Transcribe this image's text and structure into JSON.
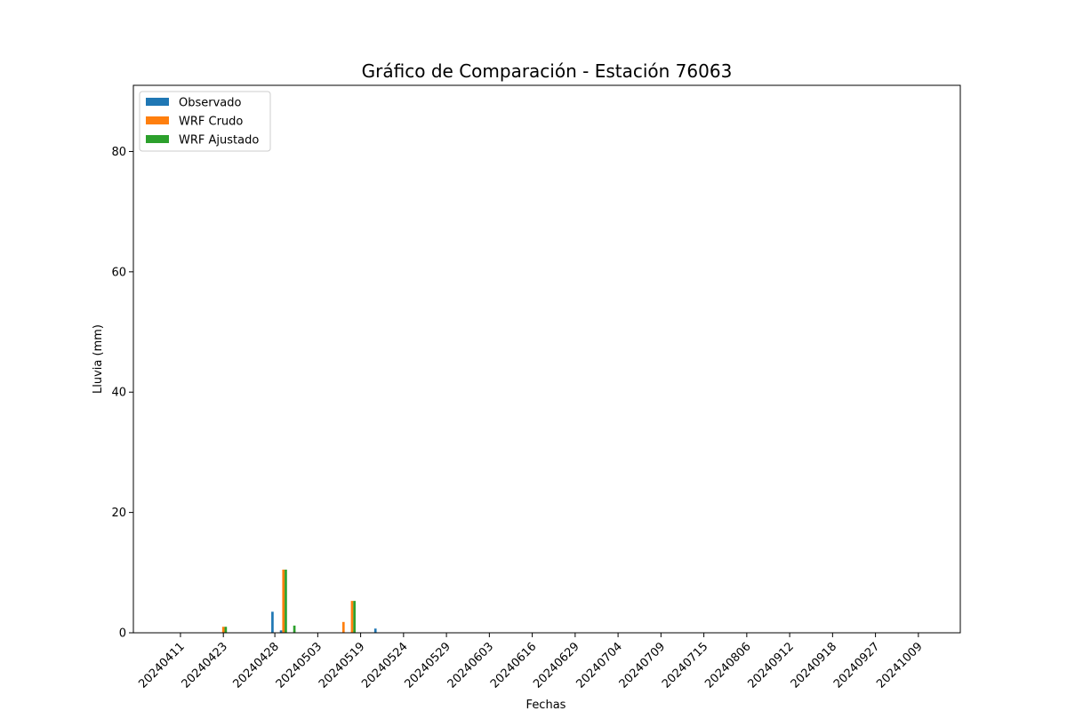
{
  "chart_data": {
    "type": "bar",
    "title": "Gráfico de Comparación - Estación 76063",
    "xlabel": "Fechas",
    "ylabel": "Lluvia (mm)",
    "ylim": [
      0,
      91
    ],
    "yticks": [
      0,
      20,
      40,
      60,
      80
    ],
    "legend_position": "top-left",
    "grid": false,
    "xticks": [
      "20240411",
      "20240423",
      "20240428",
      "20240503",
      "20240519",
      "20240524",
      "20240529",
      "20240603",
      "20240616",
      "20240629",
      "20240704",
      "20240709",
      "20240715",
      "20240806",
      "20240912",
      "20240918",
      "20240927",
      "20241009"
    ],
    "xtick_indices": [
      3,
      8,
      14,
      19,
      24,
      29,
      34,
      39,
      44,
      49,
      54,
      59,
      64,
      69,
      74,
      79,
      84,
      89
    ],
    "n_dates": 92,
    "series": [
      {
        "name": "Observado",
        "color": "#1f77b4",
        "values": [
          0,
          0,
          0,
          0,
          0,
          0,
          0,
          0,
          0,
          0,
          0,
          0,
          0,
          0,
          3.5,
          0.4,
          0,
          0,
          0,
          0,
          0,
          0,
          0,
          0,
          0,
          0,
          0.7,
          0,
          0,
          0,
          0,
          0,
          0,
          0,
          0,
          0,
          0,
          0,
          0,
          0,
          0,
          0,
          0,
          0,
          0,
          0,
          0,
          0,
          0,
          0,
          0,
          0,
          0,
          0,
          0,
          0,
          0,
          0,
          0,
          0,
          0,
          0,
          0,
          0,
          0,
          0,
          0,
          0,
          0,
          0,
          0,
          0,
          0,
          0,
          0,
          0,
          0,
          0,
          0,
          0,
          0,
          0,
          0,
          0,
          0,
          0,
          0,
          0,
          0,
          0,
          0,
          0
        ]
      },
      {
        "name": "WRF Crudo",
        "color": "#ff7f0e",
        "values": [
          0,
          0,
          0,
          0,
          0,
          0,
          0,
          0,
          1,
          0,
          0,
          0,
          0,
          0,
          0,
          10.5,
          0,
          0,
          0,
          0,
          0,
          0,
          1.8,
          5.3,
          0,
          0,
          0,
          0,
          0,
          0,
          0,
          0,
          0,
          0,
          0,
          0,
          0,
          0,
          0,
          0,
          0,
          0,
          0,
          0,
          0,
          0,
          0,
          0,
          0,
          0,
          0,
          0,
          0,
          0,
          0,
          0,
          0,
          0,
          0,
          0,
          0,
          0,
          0,
          0,
          0,
          0,
          0,
          0,
          0,
          0,
          0,
          0,
          0,
          0,
          0,
          0,
          0,
          0,
          0,
          0,
          0,
          0,
          0,
          0,
          0,
          0,
          0,
          0,
          0,
          0,
          0,
          0
        ]
      },
      {
        "name": "WRF Ajustado",
        "color": "#2ca02c",
        "values": [
          0,
          0,
          0,
          0,
          0,
          0,
          0,
          0,
          1,
          0,
          0,
          0,
          0,
          0,
          0,
          10.5,
          1.2,
          0,
          0,
          0,
          0,
          0,
          0,
          5.3,
          0,
          0,
          0,
          0,
          0,
          0,
          0,
          0,
          0,
          0,
          0,
          0,
          0,
          0,
          0,
          0,
          0,
          0,
          0,
          0,
          0,
          0,
          0,
          0,
          0,
          0,
          0,
          0,
          0,
          0,
          0,
          0,
          0,
          0,
          0,
          0,
          0,
          0,
          0,
          0,
          0,
          0,
          0,
          0,
          0,
          0,
          0,
          0,
          0,
          0,
          0,
          0,
          0,
          0,
          0,
          0,
          0,
          0,
          0,
          0,
          0,
          0,
          0,
          0,
          0,
          0,
          0,
          0
        ]
      }
    ]
  }
}
